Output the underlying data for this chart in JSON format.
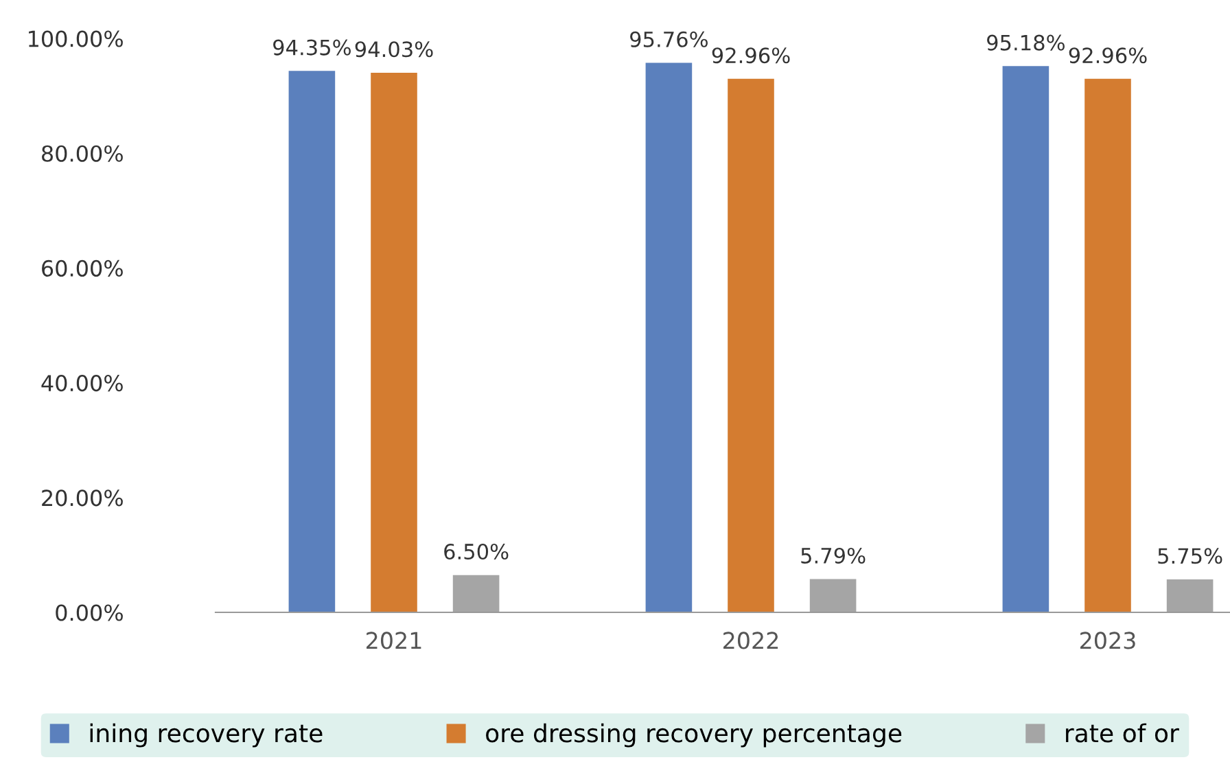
{
  "chart_data": {
    "type": "bar",
    "categories": [
      "2021",
      "2022",
      "2023"
    ],
    "series": [
      {
        "name": "ining recovery rate",
        "color": "#5b80bd",
        "values": [
          94.35,
          95.76,
          95.18
        ],
        "value_labels": [
          "94.35%",
          "95.76%",
          "95.18%"
        ]
      },
      {
        "name": "ore dressing recovery percentage",
        "color": "#d47c30",
        "values": [
          94.03,
          92.96,
          92.96
        ],
        "value_labels": [
          "94.03%",
          "92.96%",
          "92.96%"
        ]
      },
      {
        "name": "rate of or",
        "color": "#a5a5a5",
        "values": [
          6.5,
          5.79,
          5.75
        ],
        "value_labels": [
          "6.50%",
          "5.79%",
          "5.75%"
        ]
      }
    ],
    "ylim": [
      0,
      100
    ],
    "yticks": [
      {
        "value": 0,
        "label": "0.00%"
      },
      {
        "value": 20,
        "label": "20.00%"
      },
      {
        "value": 40,
        "label": "40.00%"
      },
      {
        "value": 60,
        "label": "60.00%"
      },
      {
        "value": 80,
        "label": "80.00%"
      },
      {
        "value": 100,
        "label": "100.00%"
      }
    ],
    "grid": false,
    "legend": "bottom"
  }
}
